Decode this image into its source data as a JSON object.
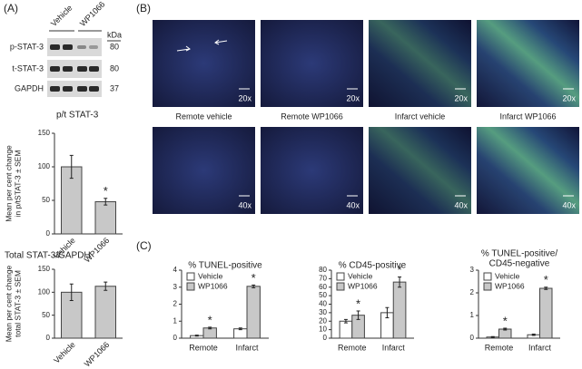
{
  "panel_labels": [
    "(A)",
    "(B)",
    "(C)"
  ],
  "western_blot": {
    "lanes": [
      "Vehicle",
      "WP1066"
    ],
    "unit": "kDa",
    "rows": [
      {
        "label": "p-STAT-3",
        "kda": 80
      },
      {
        "label": "t-STAT-3",
        "kda": 80
      },
      {
        "label": "GAPDH",
        "kda": 37
      }
    ]
  },
  "micrographs": {
    "captions": [
      "Remote vehicle",
      "Remote WP1066",
      "Infarct vehicle",
      "Infarct WP1066"
    ],
    "magnifications": [
      [
        "20x",
        "20x",
        "20x",
        "20x"
      ],
      [
        "40x",
        "40x",
        "40x",
        "40x"
      ]
    ]
  },
  "chart_data": [
    {
      "type": "bar",
      "title": "p/t STAT-3",
      "ylabel": [
        "Mean per cent change",
        "in p/tSTAT-3 ± SEM"
      ],
      "categories": [
        "Vehicle",
        "WP1066"
      ],
      "values": [
        100,
        48
      ],
      "errors": [
        17,
        5
      ],
      "markers": [
        null,
        "*"
      ],
      "color": "#c8c8c8",
      "ylim": [
        0,
        150
      ],
      "yticks": [
        0,
        50,
        100,
        150
      ]
    },
    {
      "type": "bar",
      "title": "Total STAT-3/GAPDH",
      "ylabel": [
        "Mean per cent change",
        "total STAT-3 ± SEM"
      ],
      "categories": [
        "Vehicle",
        "WP1066"
      ],
      "values": [
        100,
        113
      ],
      "errors": [
        18,
        9
      ],
      "markers": [
        null,
        null
      ],
      "color": "#c8c8c8",
      "ylim": [
        0,
        150
      ],
      "yticks": [
        0,
        50,
        100,
        150
      ]
    },
    {
      "type": "grouped-bar",
      "title": [
        "% TUNEL-positive"
      ],
      "categories": [
        "Remote",
        "Infarct"
      ],
      "legend": "upper left",
      "series": [
        {
          "name": "Vehicle",
          "color": "#ffffff",
          "values": [
            0.15,
            0.55
          ],
          "errors": [
            0.03,
            0.05
          ],
          "markers": [
            null,
            null
          ]
        },
        {
          "name": "WP1066",
          "color": "#c8c8c8",
          "values": [
            0.6,
            3.05
          ],
          "errors": [
            0.05,
            0.08
          ],
          "markers": [
            "*",
            "*"
          ]
        }
      ],
      "ylim": [
        0,
        4
      ],
      "yticks": [
        0,
        1,
        2,
        3,
        4
      ]
    },
    {
      "type": "grouped-bar",
      "title": [
        "% CD45-positive"
      ],
      "categories": [
        "Remote",
        "Infarct"
      ],
      "legend": "upper left",
      "series": [
        {
          "name": "Vehicle",
          "color": "#ffffff",
          "values": [
            20,
            30
          ],
          "errors": [
            2,
            6
          ],
          "markers": [
            null,
            null
          ]
        },
        {
          "name": "WP1066",
          "color": "#c8c8c8",
          "values": [
            27,
            66
          ],
          "errors": [
            5,
            6
          ],
          "markers": [
            "*",
            "*"
          ]
        }
      ],
      "ylim": [
        0,
        80
      ],
      "yticks": [
        0,
        10,
        20,
        30,
        40,
        50,
        60,
        70,
        80
      ]
    },
    {
      "type": "grouped-bar",
      "title": [
        "% TUNEL-positive/",
        "CD45-negative"
      ],
      "categories": [
        "Remote",
        "Infarct"
      ],
      "legend": "upper left",
      "series": [
        {
          "name": "Vehicle",
          "color": "#ffffff",
          "values": [
            0.05,
            0.15
          ],
          "errors": [
            0.02,
            0.03
          ],
          "markers": [
            null,
            null
          ]
        },
        {
          "name": "WP1066",
          "color": "#c8c8c8",
          "values": [
            0.4,
            2.2
          ],
          "errors": [
            0.04,
            0.05
          ],
          "markers": [
            "*",
            "*"
          ]
        }
      ],
      "ylim": [
        0,
        3
      ],
      "yticks": [
        0,
        1,
        2,
        3
      ]
    }
  ]
}
